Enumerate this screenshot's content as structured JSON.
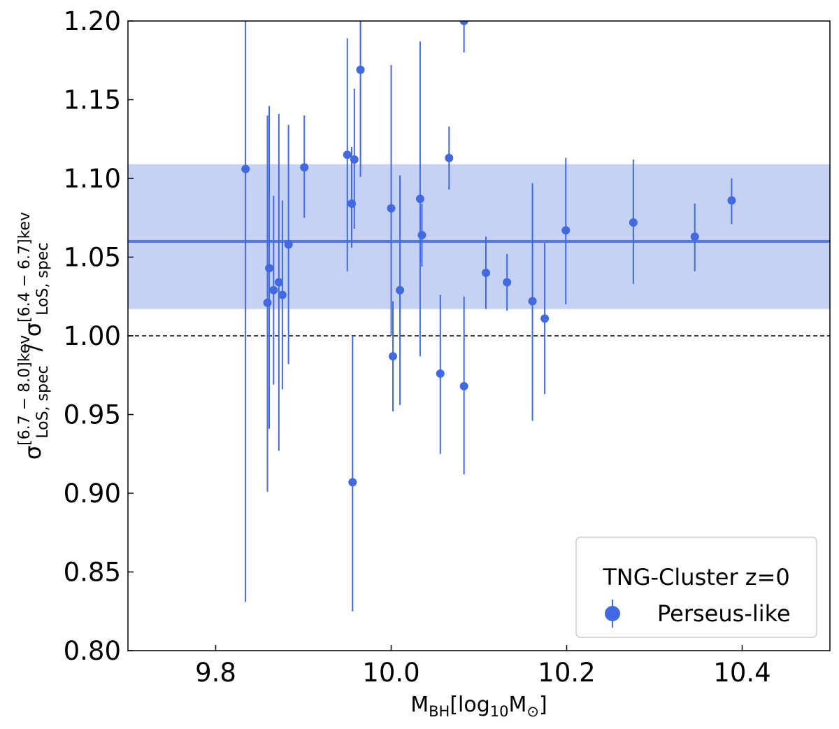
{
  "chart_data": {
    "type": "scatter",
    "xlabel": {
      "main": "M",
      "sub": "BH",
      "rest": "[log",
      "sub2": "10",
      "rest2": "M",
      "sub3": "⊙",
      "end": "]"
    },
    "ylabel": {
      "num_sup": "[6.7 − 8.0]kev",
      "num_sub": "LoS, spec",
      "sep": " / ",
      "den_sup": "[6.4 − 6.7]kev",
      "den_sub": "LoS, spec",
      "symbol": "σ"
    },
    "xlim": [
      9.7,
      10.5
    ],
    "ylim": [
      0.8,
      1.2
    ],
    "xticks": [
      "9.8",
      "10.0",
      "10.2",
      "10.4"
    ],
    "xtick_values": [
      9.8,
      10.0,
      10.2,
      10.4
    ],
    "yticks": [
      "0.80",
      "0.85",
      "0.90",
      "0.95",
      "1.00",
      "1.05",
      "1.10",
      "1.15",
      "1.20"
    ],
    "ytick_values": [
      0.8,
      0.85,
      0.9,
      0.95,
      1.0,
      1.05,
      1.1,
      1.15,
      1.2
    ],
    "reference_line": 1.0,
    "mean_line": 1.06,
    "band": [
      1.017,
      1.109
    ],
    "color": "#4169e1",
    "band_color": "#c5d2f4",
    "legend": {
      "title": "TNG-Cluster z=0",
      "label": "Perseus-like",
      "position": "lower-right"
    },
    "series": [
      {
        "name": "Perseus-like",
        "points": [
          {
            "x": 9.834,
            "y": 1.106,
            "lo": 0.831,
            "hi": 1.25
          },
          {
            "x": 9.859,
            "y": 1.021,
            "lo": 0.901,
            "hi": 1.14
          },
          {
            "x": 9.861,
            "y": 1.043,
            "lo": 0.941,
            "hi": 1.146
          },
          {
            "x": 9.866,
            "y": 1.029,
            "lo": 0.969,
            "hi": 1.089
          },
          {
            "x": 9.872,
            "y": 1.034,
            "lo": 0.927,
            "hi": 1.141
          },
          {
            "x": 9.876,
            "y": 1.026,
            "lo": 0.966,
            "hi": 1.086
          },
          {
            "x": 9.883,
            "y": 1.058,
            "lo": 0.982,
            "hi": 1.134
          },
          {
            "x": 9.901,
            "y": 1.107,
            "lo": 1.075,
            "hi": 1.14
          },
          {
            "x": 9.95,
            "y": 1.115,
            "lo": 1.041,
            "hi": 1.189
          },
          {
            "x": 9.955,
            "y": 1.084,
            "lo": 1.056,
            "hi": 1.12
          },
          {
            "x": 9.956,
            "y": 0.907,
            "lo": 0.825,
            "hi": 1.0
          },
          {
            "x": 9.958,
            "y": 1.112,
            "lo": 1.068,
            "hi": 1.157
          },
          {
            "x": 9.965,
            "y": 1.169,
            "lo": 1.101,
            "hi": 1.25
          },
          {
            "x": 10.0,
            "y": 1.081,
            "lo": 1.0,
            "hi": 1.172
          },
          {
            "x": 10.002,
            "y": 0.987,
            "lo": 0.952,
            "hi": 1.022
          },
          {
            "x": 10.01,
            "y": 1.029,
            "lo": 0.956,
            "hi": 1.102
          },
          {
            "x": 10.033,
            "y": 1.087,
            "lo": 0.987,
            "hi": 1.187
          },
          {
            "x": 10.035,
            "y": 1.064,
            "lo": 1.044,
            "hi": 1.084
          },
          {
            "x": 10.056,
            "y": 0.976,
            "lo": 0.925,
            "hi": 1.026
          },
          {
            "x": 10.066,
            "y": 1.113,
            "lo": 1.093,
            "hi": 1.133
          },
          {
            "x": 10.083,
            "y": 1.2,
            "lo": 1.18,
            "hi": 1.25
          },
          {
            "x": 10.083,
            "y": 0.968,
            "lo": 0.912,
            "hi": 1.025
          },
          {
            "x": 10.108,
            "y": 1.04,
            "lo": 1.017,
            "hi": 1.063
          },
          {
            "x": 10.132,
            "y": 1.034,
            "lo": 1.016,
            "hi": 1.052
          },
          {
            "x": 10.161,
            "y": 1.022,
            "lo": 0.946,
            "hi": 1.097
          },
          {
            "x": 10.175,
            "y": 1.011,
            "lo": 0.963,
            "hi": 1.059
          },
          {
            "x": 10.199,
            "y": 1.067,
            "lo": 1.02,
            "hi": 1.113
          },
          {
            "x": 10.276,
            "y": 1.072,
            "lo": 1.033,
            "hi": 1.112
          },
          {
            "x": 10.346,
            "y": 1.063,
            "lo": 1.041,
            "hi": 1.084
          },
          {
            "x": 10.388,
            "y": 1.086,
            "lo": 1.071,
            "hi": 1.1
          }
        ]
      }
    ]
  }
}
